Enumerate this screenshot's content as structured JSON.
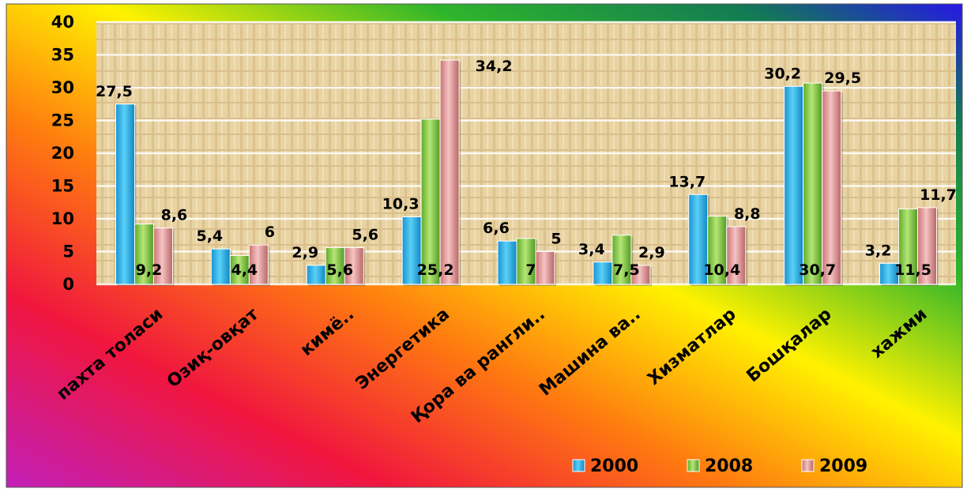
{
  "chart_data": {
    "type": "bar",
    "title": "",
    "xlabel": "",
    "ylabel": "",
    "categories": [
      "пахта толаси",
      "Озиқ-овқат",
      "кимё..",
      "Энергетика",
      "Қора ва рангли..",
      "Машина ва..",
      "Хизматлар",
      "Бошқалар",
      "хажми"
    ],
    "series": [
      {
        "name": "2000",
        "color": "#33b8ea",
        "values": [
          27.5,
          5.4,
          2.9,
          10.3,
          6.6,
          3.4,
          13.7,
          30.2,
          3.2
        ],
        "labels": [
          "27,5",
          "5,4",
          "2,9",
          "10,3",
          "6,6",
          "3,4",
          "13,7",
          "30,2",
          "3,2"
        ]
      },
      {
        "name": "2008",
        "color": "#8fd14a",
        "values": [
          9.2,
          4.4,
          5.6,
          25.2,
          7,
          7.5,
          10.4,
          30.7,
          11.5
        ],
        "labels": [
          "9,2",
          "4,4",
          "5,6",
          "25,2",
          "7",
          "7,5",
          "10,4",
          "30,7",
          "11,5"
        ]
      },
      {
        "name": "2009",
        "color": "#e39a9a",
        "values": [
          8.6,
          6,
          5.6,
          34.2,
          5,
          2.9,
          8.8,
          29.5,
          11.7
        ],
        "labels": [
          "8,6",
          "6",
          "5,6",
          "34,2",
          "5",
          "2,9",
          "8,8",
          "29,5",
          "11,7"
        ]
      }
    ],
    "ylim": [
      0,
      40
    ],
    "yticks": [
      0,
      5,
      10,
      15,
      20,
      25,
      30,
      35,
      40
    ],
    "grid": true,
    "legend": "bottom-right"
  }
}
